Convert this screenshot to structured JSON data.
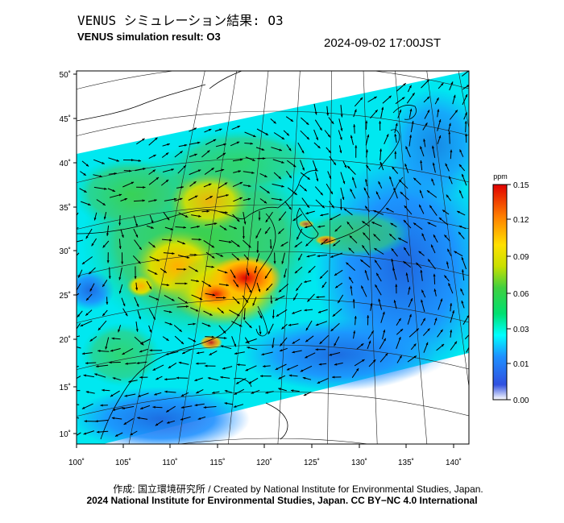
{
  "header": {
    "title_jp": "VENUS シミュレーション結果: O3",
    "title_en": "VENUS simulation result: O3",
    "timestamp": "2024-09-02 17:00JST"
  },
  "map": {
    "lat_ticks": [
      {
        "label": "50˚"
      },
      {
        "label": "45˚"
      },
      {
        "label": "40˚"
      },
      {
        "label": "35˚"
      },
      {
        "label": "30˚"
      },
      {
        "label": "25˚"
      },
      {
        "label": "20˚"
      },
      {
        "label": "15˚"
      },
      {
        "label": "10˚"
      }
    ],
    "lon_ticks": [
      {
        "label": "100˚"
      },
      {
        "label": "105˚"
      },
      {
        "label": "110˚"
      },
      {
        "label": "115˚"
      },
      {
        "label": "120˚"
      },
      {
        "label": "125˚"
      },
      {
        "label": "130˚"
      },
      {
        "label": "135˚"
      },
      {
        "label": "140˚"
      }
    ]
  },
  "colorbar": {
    "unit": "ppm",
    "ticks": [
      "0.15",
      "0.12",
      "0.09",
      "0.06",
      "0.03",
      "0.01",
      "0.00"
    ],
    "colors": [
      "#ffffff",
      "#3050e0",
      "#1e90ff",
      "#00ffff",
      "#00e070",
      "#40d040",
      "#c8e000",
      "#ffe000",
      "#ff8000",
      "#e00000"
    ]
  },
  "footer": {
    "credit_line": "作成: 国立環境研究所 / Created by National Institute for Environmental Studies, Japan.",
    "copyright_line": "2024 National Institute for Environmental Studies, Japan. CC BY−NC 4.0 International"
  }
}
